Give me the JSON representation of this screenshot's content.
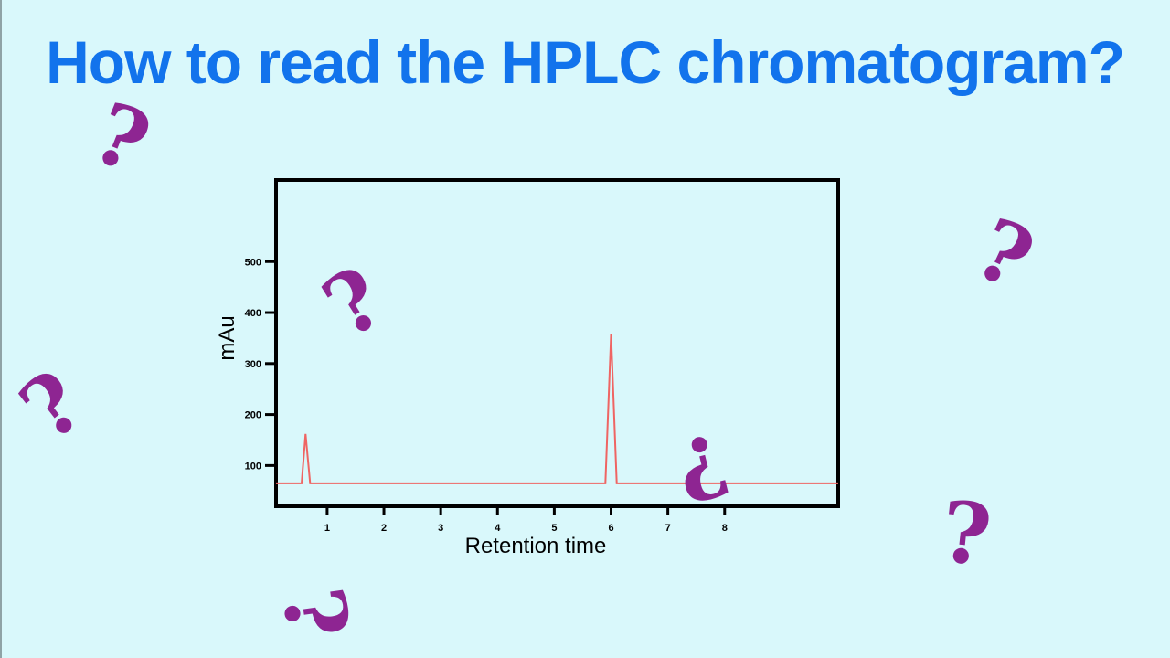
{
  "title": "How to read the HPLC chromatogram?",
  "colors": {
    "background": "#d9f8fb",
    "title": "#1273ec",
    "question_marks": "#8e2592",
    "trace": "#ef6563",
    "frame": "#000000"
  },
  "decorations": {
    "question_mark_glyph": "?",
    "inverted_question_mark_glyph": "¿"
  },
  "chart_data": {
    "type": "line",
    "title": "",
    "xlabel": "Retention time",
    "ylabel": "mAu",
    "x_ticks": [
      1,
      2,
      3,
      4,
      5,
      6,
      7,
      8
    ],
    "y_ticks": [
      100,
      200,
      300,
      400,
      500
    ],
    "xlim": [
      0.1,
      10
    ],
    "ylim": [
      20,
      660
    ],
    "grid": false,
    "legend": "none",
    "series": [
      {
        "x": [
          0.1,
          0.55,
          0.62,
          0.7,
          5.9,
          6.0,
          6.1,
          10
        ],
        "y": [
          65,
          65,
          162,
          65,
          65,
          357,
          65,
          65
        ]
      }
    ]
  }
}
